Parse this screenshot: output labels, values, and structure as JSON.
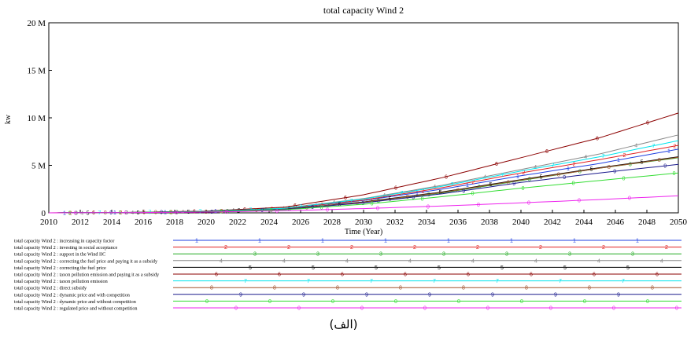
{
  "caption": "(الف)",
  "chart_data": {
    "type": "line",
    "title": "total capacity Wind 2",
    "xlabel": "Time (Year)",
    "ylabel": "kw",
    "xlim": [
      2010,
      2050
    ],
    "ylim": [
      0,
      20000000
    ],
    "x_ticks": [
      "2010",
      "2012",
      "2014",
      "2016",
      "2018",
      "2020",
      "2022",
      "2024",
      "2026",
      "2028",
      "2030",
      "2032",
      "2034",
      "2036",
      "2038",
      "2040",
      "2042",
      "2044",
      "2046",
      "2048",
      "2050"
    ],
    "y_ticks": [
      {
        "value": 0,
        "label": "0"
      },
      {
        "value": 5000000,
        "label": "5 M"
      },
      {
        "value": 10000000,
        "label": "10 M"
      },
      {
        "value": 15000000,
        "label": "15 M"
      },
      {
        "value": 20000000,
        "label": "20 M"
      }
    ],
    "grid": false,
    "legend_position": "bottom",
    "x": [
      2010,
      2015,
      2020,
      2025,
      2030,
      2035,
      2040,
      2045,
      2050
    ],
    "series": [
      {
        "name": "total capacity Wind 2 : increasing in capacity factor",
        "marker": "1",
        "color": "#1f3fe0",
        "values": [
          0,
          40000,
          150000,
          450000,
          1300000,
          2500000,
          3900000,
          5200000,
          6700000
        ]
      },
      {
        "name": "total capacity Wind 2 : investing in social acceptance",
        "marker": "2",
        "color": "#e02020",
        "values": [
          0,
          40000,
          150000,
          450000,
          1350000,
          2650000,
          4200000,
          5600000,
          7100000
        ]
      },
      {
        "name": "total capacity Wind 2 : support in the Wind IIC",
        "marker": "3",
        "color": "#22aa22",
        "values": [
          0,
          35000,
          130000,
          380000,
          1100000,
          2100000,
          3400000,
          4700000,
          5800000
        ]
      },
      {
        "name": "total capacity Wind 2 : correcting the fuel price and paying it  as a subsidy",
        "marker": "4",
        "color": "#888888",
        "values": [
          0,
          40000,
          160000,
          500000,
          1500000,
          2900000,
          4550000,
          6200000,
          8200000
        ]
      },
      {
        "name": "total capacity Wind 2 : correcting the fuel price",
        "marker": "5",
        "color": "#000000",
        "values": [
          0,
          35000,
          130000,
          390000,
          1150000,
          2200000,
          3500000,
          4750000,
          5900000
        ]
      },
      {
        "name": "total capacity Wind 2 : taxon pollution emission and paying it as a subsidy",
        "marker": "6",
        "color": "#8b0000",
        "values": [
          0,
          45000,
          180000,
          600000,
          1900000,
          3700000,
          5800000,
          7900000,
          10500000
        ]
      },
      {
        "name": "total capacity Wind 2 : taxon pollution emission",
        "marker": "7",
        "color": "#00e5ee",
        "values": [
          0,
          40000,
          155000,
          480000,
          1450000,
          2800000,
          4400000,
          5900000,
          7600000
        ]
      },
      {
        "name": "total capacity Wind 2 : direct subsidy",
        "marker": "8",
        "color": "#a0522d",
        "values": [
          0,
          35000,
          130000,
          385000,
          1120000,
          2150000,
          3450000,
          4700000,
          5850000
        ]
      },
      {
        "name": "total capacity Wind 2 : dynamic price and with competition",
        "marker": "9",
        "color": "#1a1a8c",
        "values": [
          0,
          35000,
          125000,
          360000,
          1050000,
          2000000,
          3200000,
          4200000,
          5100000
        ]
      },
      {
        "name": "total capacity Wind 2 : dynamic price and without competition",
        "marker": "0",
        "color": "#33dd33",
        "values": [
          0,
          30000,
          110000,
          320000,
          900000,
          1700000,
          2600000,
          3400000,
          4200000
        ]
      },
      {
        "name": "total capacity Wind 2 : regulated price and without competition",
        "marker": "0",
        "color": "#ee22ee",
        "values": [
          0,
          25000,
          80000,
          220000,
          450000,
          720000,
          1050000,
          1400000,
          1800000
        ]
      }
    ]
  }
}
